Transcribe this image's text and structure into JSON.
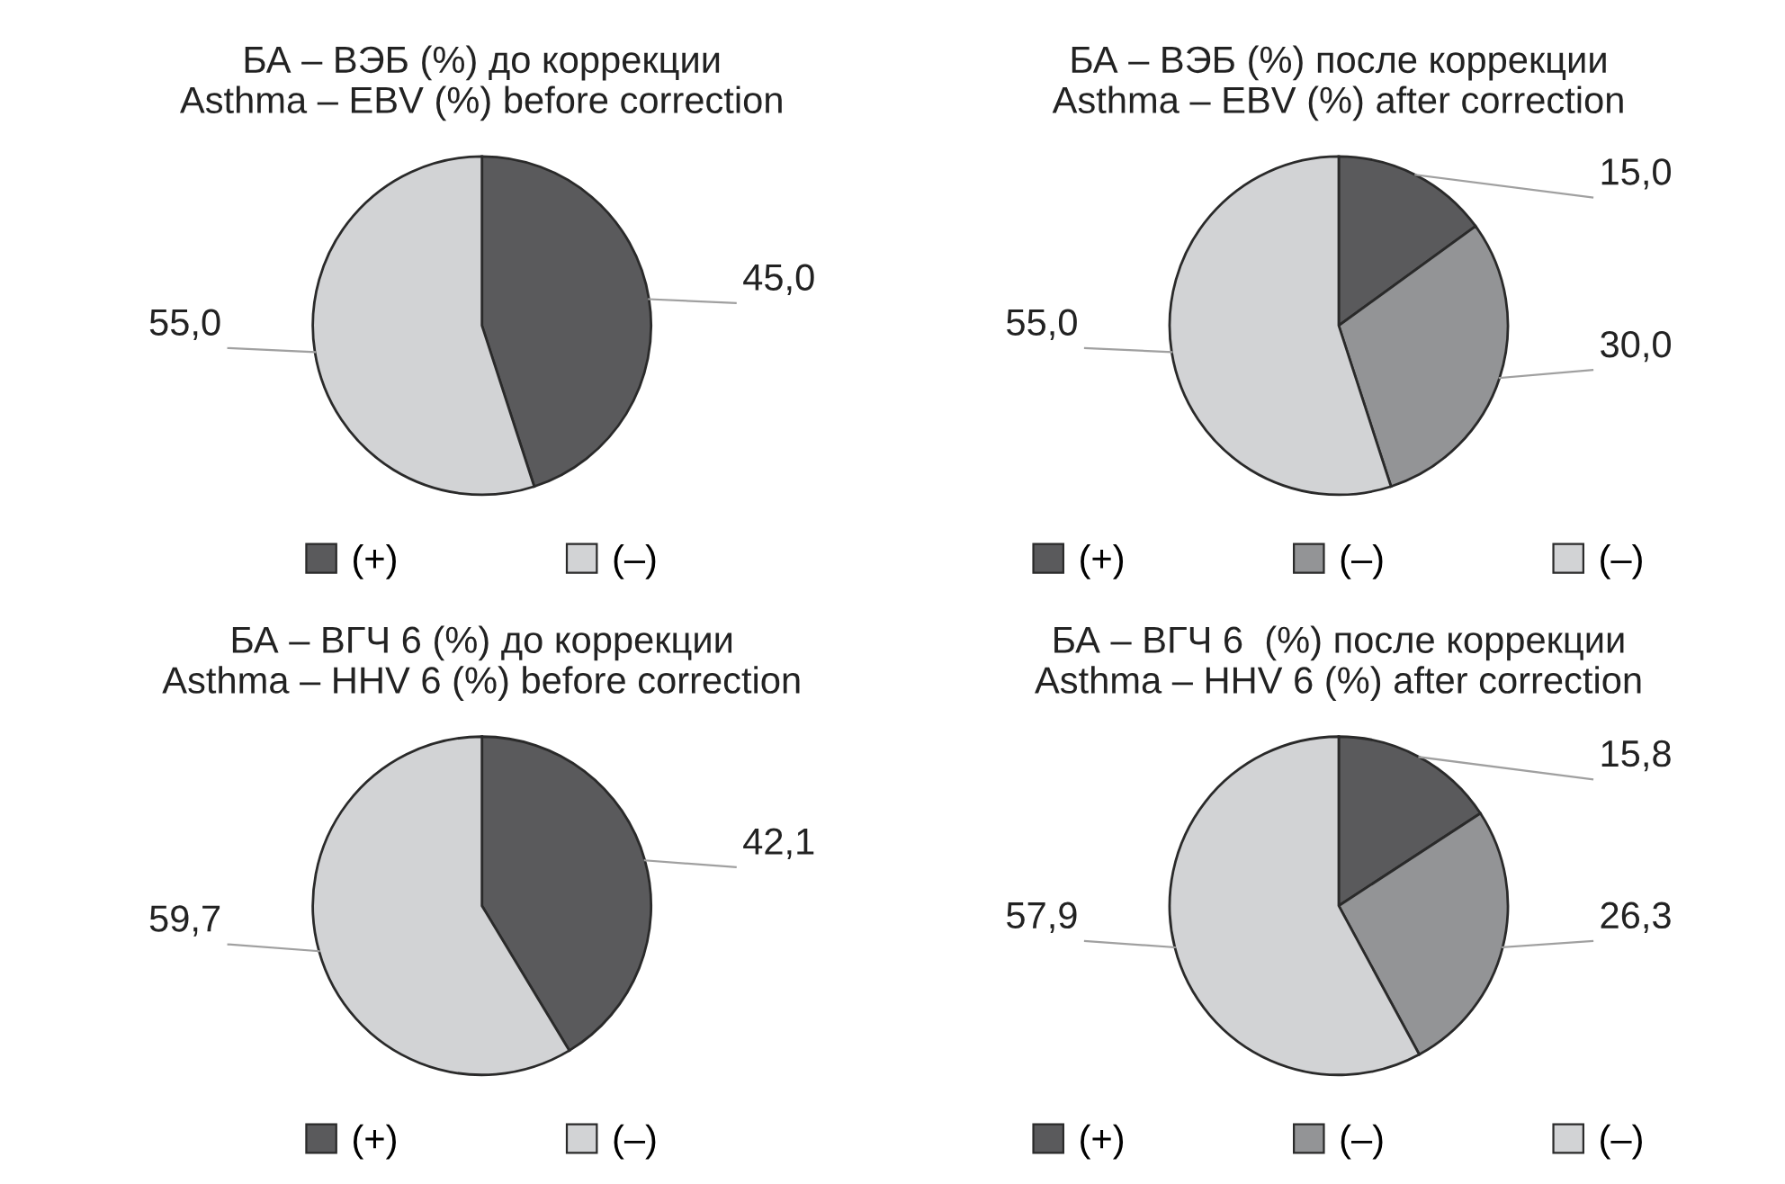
{
  "chart_data": [
    {
      "type": "pie",
      "title": "БА – ВЭБ (%) до коррекции\nAsthma – EBV (%) before correction",
      "categories": [
        "(+)",
        "(–)"
      ],
      "values": [
        45.0,
        55.0
      ],
      "value_labels": [
        "45,0",
        "55,0"
      ],
      "colors": [
        "#5a5a5c",
        "#d2d3d5"
      ],
      "legend": "bottom"
    },
    {
      "type": "pie",
      "title": "БА – ВЭБ (%) после коррекции\nAsthma – EBV (%) after correction",
      "categories": [
        "(+)",
        "(–)",
        "(–)"
      ],
      "values": [
        15.0,
        30.0,
        55.0
      ],
      "value_labels": [
        "15,0",
        "30,0",
        "55,0"
      ],
      "colors": [
        "#5a5a5c",
        "#939496",
        "#d2d3d5"
      ],
      "legend": "bottom"
    },
    {
      "type": "pie",
      "title": "БА – ВГЧ 6 (%) до коррекции\nAsthma – HHV 6 (%) before correction",
      "categories": [
        "(+)",
        "(–)"
      ],
      "values": [
        42.1,
        59.7
      ],
      "value_labels": [
        "42,1",
        "59,7"
      ],
      "colors": [
        "#5a5a5c",
        "#d2d3d5"
      ],
      "legend": "bottom"
    },
    {
      "type": "pie",
      "title": "БА – ВГЧ 6  (%) после коррекции\nAsthma – HHV 6 (%) after correction",
      "categories": [
        "(+)",
        "(–)",
        "(–)"
      ],
      "values": [
        15.8,
        26.3,
        57.9
      ],
      "value_labels": [
        "15,8",
        "26,3",
        "57,9"
      ],
      "colors": [
        "#5a5a5c",
        "#939496",
        "#d2d3d5"
      ],
      "legend": "bottom"
    }
  ]
}
